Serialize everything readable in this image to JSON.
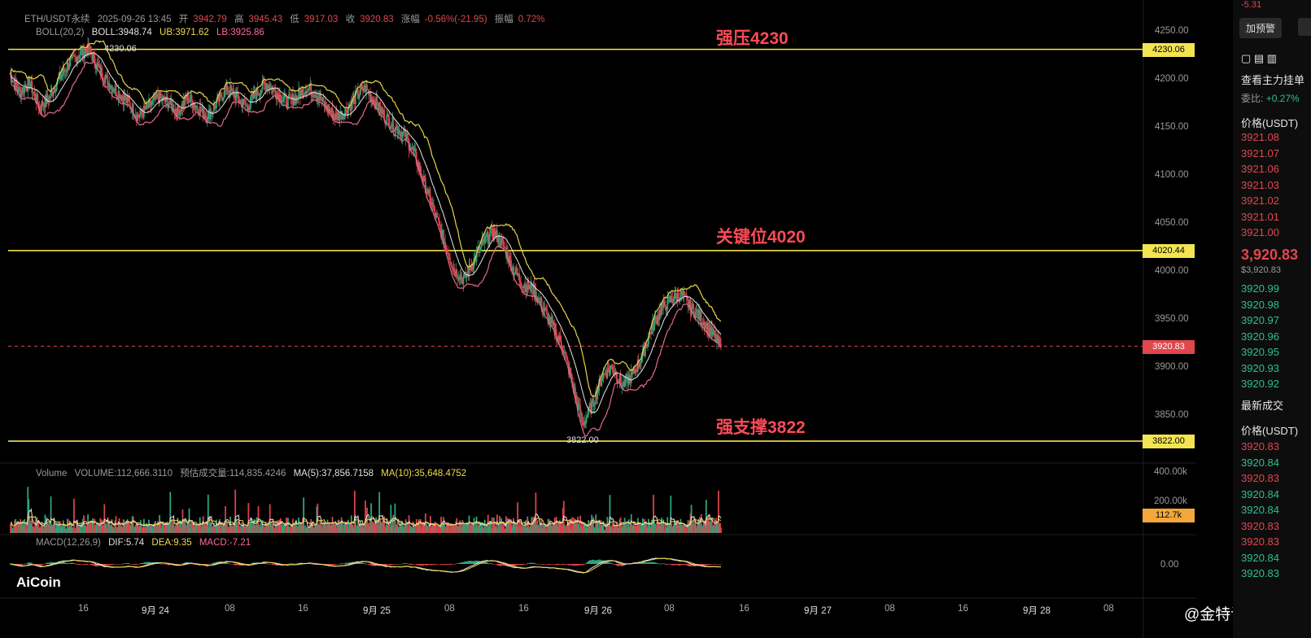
{
  "header": {
    "symbol": "ETH/USDT永续",
    "datetime": "2025-09-26 13:45",
    "open_label": "开",
    "open": "3942.79",
    "high_label": "高",
    "high": "3945.43",
    "low_label": "低",
    "low": "3917.03",
    "close_label": "收",
    "close": "3920.83",
    "change_label": "涨幅",
    "change": "-0.56%(-21.95)",
    "amp_label": "振幅",
    "amp": "0.72%"
  },
  "boll": {
    "label": "BOLL(20,2)",
    "mid": "BOLL:3948.74",
    "ub": "UB:3971.62",
    "lb": "LB:3925.86"
  },
  "volume_header": {
    "label": "Volume",
    "volume": "VOLUME:112,666.3110",
    "est": "预估成交量:114,835.4246",
    "ma5": "MA(5):37,856.7158",
    "ma10": "MA(10):35,648.4752"
  },
  "macd_header": {
    "label": "MACD(12,26,9)",
    "dif": "DIF:5.74",
    "dea": "DEA:9.35",
    "macd": "MACD:-7.21"
  },
  "annotations": {
    "resistance": "强压4230",
    "key": "关键位4020",
    "support": "强支撑3822"
  },
  "price_tags": {
    "resistance": "4230.06",
    "key": "4020.44",
    "current": "3920.83",
    "support": "3822.00",
    "volume_last": "112.7k"
  },
  "inline_labels": {
    "high_marker": "4230.06",
    "low_marker": "3822.00"
  },
  "volume_axis": [
    "400.00k",
    "200.00k"
  ],
  "macd_axis": [
    "0.00"
  ],
  "x_labels": [
    {
      "text": "16",
      "day": false
    },
    {
      "text": "9月 24",
      "day": true
    },
    {
      "text": "08",
      "day": false
    },
    {
      "text": "16",
      "day": false
    },
    {
      "text": "9月 25",
      "day": true
    },
    {
      "text": "08",
      "day": false
    },
    {
      "text": "16",
      "day": false
    },
    {
      "text": "9月 26",
      "day": true
    },
    {
      "text": "08",
      "day": false
    },
    {
      "text": "16",
      "day": false
    },
    {
      "text": "9月 27",
      "day": true
    },
    {
      "text": "08",
      "day": false
    },
    {
      "text": "16",
      "day": false
    },
    {
      "text": "9月 28",
      "day": true
    },
    {
      "text": "08",
      "day": false
    }
  ],
  "logo": "AiCoin",
  "watermark": "@金特说币",
  "right_panel": {
    "top_value": "-5.31",
    "alert_button": "加预警",
    "depth_title": "查看主力挂单",
    "ratio_label": "委比:",
    "ratio_value": "+0.27%",
    "price_header": "价格(USDT)",
    "asks": [
      "3921.08",
      "3921.07",
      "3921.06",
      "3921.03",
      "3921.02",
      "3921.01",
      "3921.00"
    ],
    "last_price": "3,920.83",
    "last_price_sub": "$3,920.83",
    "bids": [
      "3920.99",
      "3920.98",
      "3920.97",
      "3920.96",
      "3920.95",
      "3920.93",
      "3920.92"
    ],
    "trades_title": "最新成交",
    "trades_header": "价格(USDT)",
    "trades": [
      {
        "p": "3920.83",
        "side": "sell"
      },
      {
        "p": "3920.84",
        "side": "buy"
      },
      {
        "p": "3920.83",
        "side": "sell"
      },
      {
        "p": "3920.84",
        "side": "buy"
      },
      {
        "p": "3920.84",
        "side": "buy"
      },
      {
        "p": "3920.83",
        "side": "sell"
      },
      {
        "p": "3920.83",
        "side": "sell"
      },
      {
        "p": "3920.84",
        "side": "buy"
      },
      {
        "p": "3920.83",
        "side": "buy"
      }
    ]
  },
  "chart_data": {
    "type": "candlestick",
    "symbol": "ETH/USDT",
    "interval_hint": "15m",
    "y_axis_ticks": [
      4250,
      4200,
      4150,
      4100,
      4050,
      4000,
      3950,
      3900,
      3850
    ],
    "ylim": [
      3815,
      4260
    ],
    "horizontal_lines": [
      {
        "label": "强压4230",
        "value": 4230.06,
        "color": "#f3e451"
      },
      {
        "label": "关键位4020",
        "value": 4020.44,
        "color": "#f3e451"
      },
      {
        "label": "强支撑3822",
        "value": 3822.0,
        "color": "#f3e451"
      }
    ],
    "current_price": 3920.83,
    "close_path": [
      4205,
      4185,
      4195,
      4170,
      4180,
      4200,
      4215,
      4225,
      4230,
      4210,
      4195,
      4185,
      4175,
      4160,
      4170,
      4180,
      4175,
      4165,
      4180,
      4170,
      4160,
      4175,
      4190,
      4180,
      4170,
      4185,
      4195,
      4185,
      4175,
      4180,
      4190,
      4185,
      4170,
      4160,
      4165,
      4180,
      4190,
      4175,
      4160,
      4150,
      4140,
      4120,
      4090,
      4060,
      4030,
      4000,
      3990,
      4010,
      4030,
      4040,
      4025,
      4000,
      3985,
      3980,
      3960,
      3940,
      3920,
      3880,
      3840,
      3860,
      3890,
      3900,
      3880,
      3890,
      3910,
      3940,
      3960,
      3970,
      3975,
      3960,
      3950,
      3935,
      3920.83
    ],
    "volume_last": 112666.311,
    "volume_ma5": 37856.7158,
    "volume_ma10": 35648.4752,
    "macd": {
      "dif": 5.74,
      "dea": 9.35,
      "macd": -7.21
    }
  }
}
